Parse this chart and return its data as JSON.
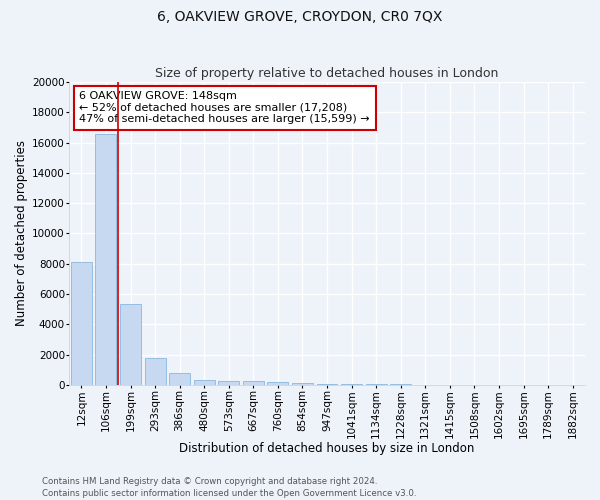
{
  "title": "6, OAKVIEW GROVE, CROYDON, CR0 7QX",
  "subtitle": "Size of property relative to detached houses in London",
  "xlabel": "Distribution of detached houses by size in London",
  "ylabel": "Number of detached properties",
  "categories": [
    "12sqm",
    "106sqm",
    "199sqm",
    "293sqm",
    "386sqm",
    "480sqm",
    "573sqm",
    "667sqm",
    "760sqm",
    "854sqm",
    "947sqm",
    "1041sqm",
    "1134sqm",
    "1228sqm",
    "1321sqm",
    "1415sqm",
    "1508sqm",
    "1602sqm",
    "1695sqm",
    "1789sqm",
    "1882sqm"
  ],
  "values": [
    8100,
    16600,
    5350,
    1750,
    780,
    340,
    290,
    230,
    210,
    150,
    80,
    50,
    40,
    30,
    25,
    20,
    18,
    15,
    12,
    10,
    8
  ],
  "bar_color": "#c6d9f0",
  "bar_edge_color": "#7aaedb",
  "vline_x": 1.5,
  "vline_color": "#cc0000",
  "annotation_text": "6 OAKVIEW GROVE: 148sqm\n← 52% of detached houses are smaller (17,208)\n47% of semi-detached houses are larger (15,599) →",
  "annotation_box_color": "#ffffff",
  "annotation_box_edge": "#cc0000",
  "ylim": [
    0,
    20000
  ],
  "yticks": [
    0,
    2000,
    4000,
    6000,
    8000,
    10000,
    12000,
    14000,
    16000,
    18000,
    20000
  ],
  "background_color": "#eef2f9",
  "grid_color": "#ffffff",
  "footer_line1": "Contains HM Land Registry data © Crown copyright and database right 2024.",
  "footer_line2": "Contains public sector information licensed under the Open Government Licence v3.0.",
  "title_fontsize": 10,
  "subtitle_fontsize": 9,
  "axis_label_fontsize": 8.5,
  "tick_fontsize": 7.5,
  "annotation_fontsize": 8
}
